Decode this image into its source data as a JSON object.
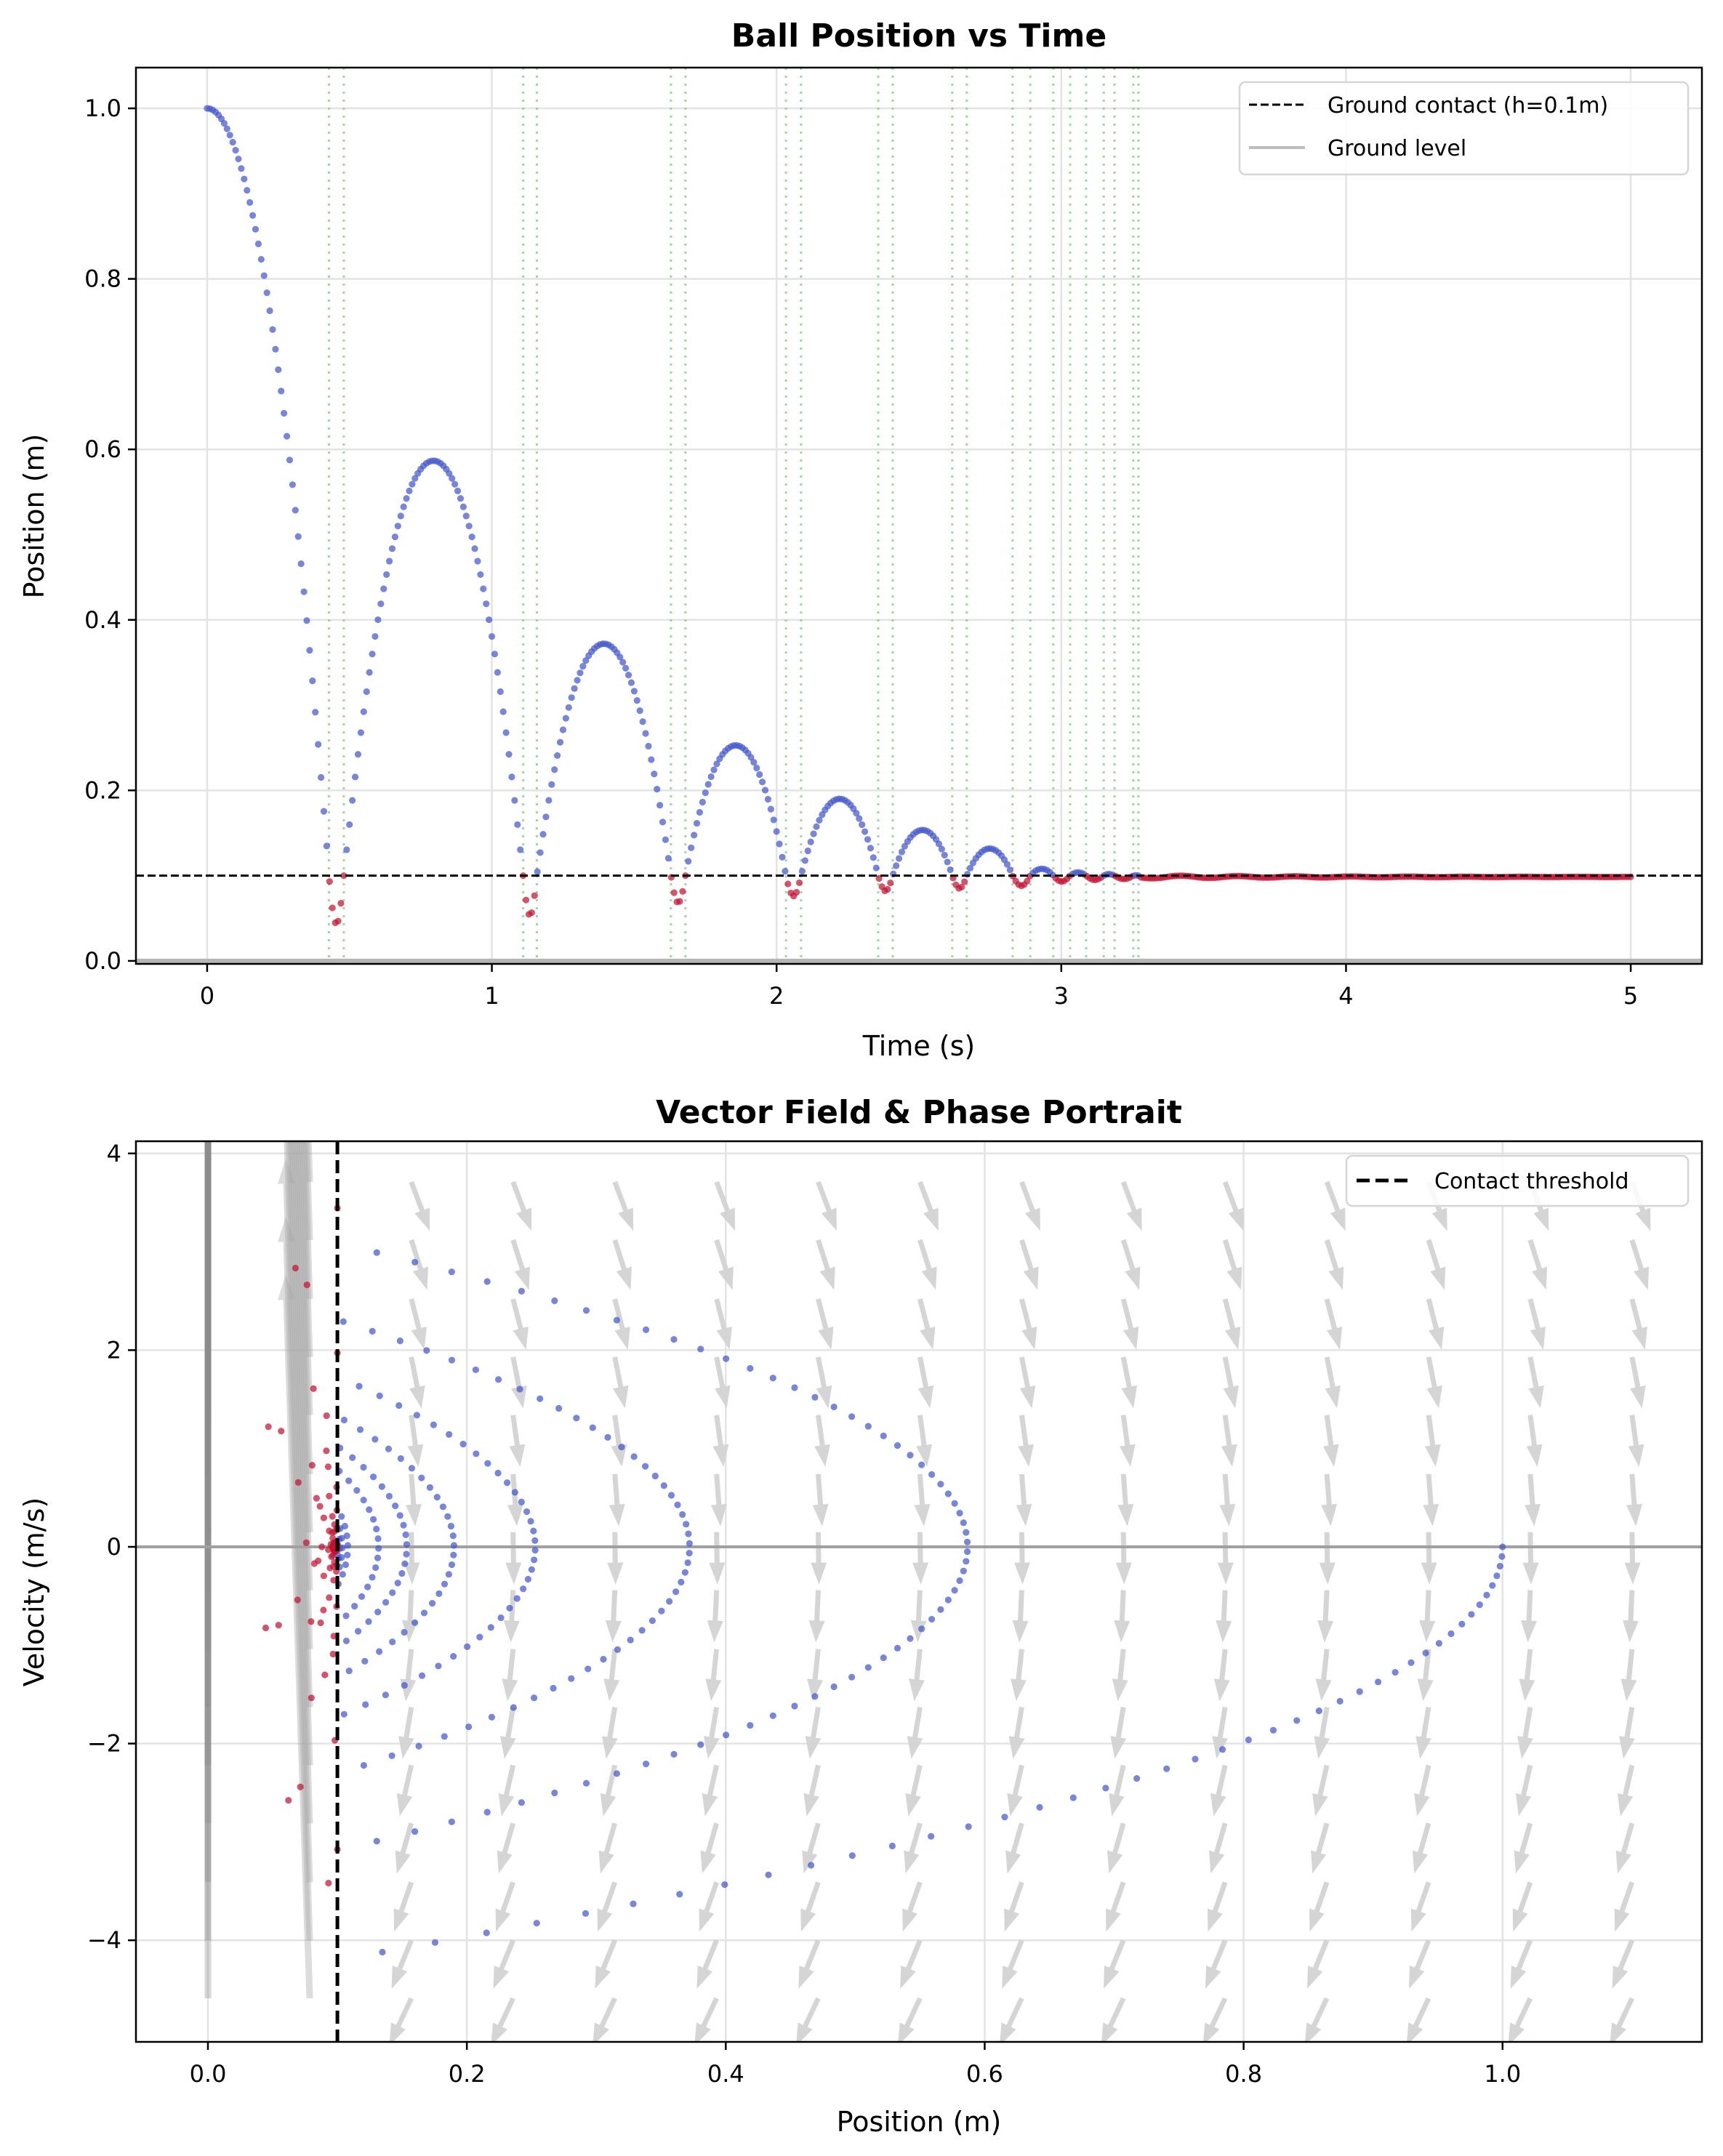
{
  "chart_data": [
    {
      "type": "scatter",
      "title": "Ball Position vs Time",
      "xlabel": "Time (s)",
      "ylabel": "Position (m)",
      "xlim": [
        -0.25,
        5.25
      ],
      "ylim": [
        -0.0035,
        1.0478
      ],
      "xticks": [
        "0",
        "1",
        "2",
        "3",
        "4",
        "5"
      ],
      "xtick_values": [
        0,
        1,
        2,
        3,
        4,
        5
      ],
      "yticks": [
        "0.0",
        "0.2",
        "0.4",
        "0.6",
        "0.8",
        "1.0"
      ],
      "ytick_values": [
        0,
        0.2,
        0.4,
        0.6,
        0.8,
        1.0
      ],
      "grid": true,
      "legend_location": "upper right",
      "legend": [
        {
          "label": "Ground contact (h=0.1m)",
          "style": "dashed",
          "color": "#000000"
        },
        {
          "label": "Ground level",
          "style": "solid",
          "color": "#bdbdbd"
        }
      ],
      "ground_contact_height": 0.1,
      "ground_level": 0.0,
      "initial_position": 1.0,
      "time_range": [
        0,
        5
      ],
      "time_step": 0.01,
      "contact_events": [
        {
          "start": 0.428,
          "end": 0.48,
          "min_position": 0.043
        },
        {
          "start": 1.11,
          "end": 1.158,
          "min_position": 0.053
        },
        {
          "start": 1.629,
          "end": 1.68,
          "min_position": 0.068
        },
        {
          "start": 2.033,
          "end": 2.086,
          "min_position": 0.076
        },
        {
          "start": 2.357,
          "end": 2.408,
          "min_position": 0.082
        },
        {
          "start": 2.617,
          "end": 2.668,
          "min_position": 0.085
        },
        {
          "start": 2.829,
          "end": 2.891,
          "min_position": 0.088
        },
        {
          "start": 2.972,
          "end": 3.031,
          "min_position": 0.093
        },
        {
          "start": 3.087,
          "end": 3.149,
          "min_position": 0.095
        },
        {
          "start": 3.187,
          "end": 3.253,
          "min_position": 0.096
        }
      ],
      "settled": {
        "start": 3.271,
        "position": 0.0985
      },
      "colors": {
        "flight": "#4457cc",
        "contact": "#c41432",
        "contact_lines": "#8fcf8f",
        "grid": "#e3e3e3"
      }
    },
    {
      "type": "scatter",
      "title": "Vector Field & Phase Portrait",
      "xlabel": "Position (m)",
      "ylabel": "Velocity (m/s)",
      "xlim": [
        -0.0556,
        1.154
      ],
      "ylim": [
        -5.033,
        4.124
      ],
      "xticks": [
        "0.0",
        "0.2",
        "0.4",
        "0.6",
        "0.8",
        "1.0"
      ],
      "xtick_values": [
        0,
        0.2,
        0.4,
        0.6,
        0.8,
        1.0
      ],
      "yticks": [
        "−4",
        "−2",
        "0",
        "2",
        "4"
      ],
      "ytick_values": [
        -4,
        -2,
        0,
        2,
        4
      ],
      "grid": true,
      "legend_location": "upper right",
      "legend": [
        {
          "label": "Contact threshold",
          "style": "dashed",
          "color": "#000000"
        }
      ],
      "contact_threshold": 0.1,
      "quiver": {
        "x_grid": [
          0,
          0.0786,
          0.1571,
          0.2357,
          0.3143,
          0.3929,
          0.4714,
          0.55,
          0.6286,
          0.7071,
          0.7857,
          0.8643,
          0.9429,
          1.0214,
          1.1
        ],
        "v_grid": [
          3.71,
          3.12,
          2.52,
          1.93,
          1.34,
          0.74,
          0.15,
          -0.44,
          -1.04,
          -1.63,
          -2.22,
          -2.81,
          -3.41,
          -4.0,
          -4.59
        ],
        "color": "#d3d3d3"
      },
      "colors": {
        "flight": "#4457cc",
        "contact": "#c41432",
        "zero_line": "#a0a0a0"
      }
    }
  ]
}
